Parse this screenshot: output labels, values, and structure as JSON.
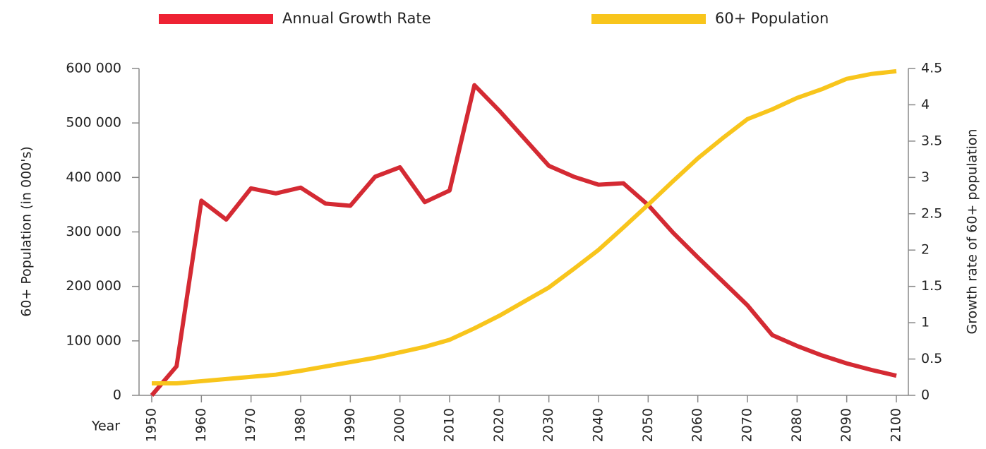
{
  "chart_data": {
    "type": "line",
    "x": [
      1950,
      1955,
      1960,
      1965,
      1970,
      1975,
      1980,
      1985,
      1990,
      1995,
      2000,
      2005,
      2010,
      2015,
      2020,
      2025,
      2030,
      2035,
      2040,
      2045,
      2050,
      2055,
      2060,
      2065,
      2070,
      2075,
      2080,
      2085,
      2090,
      2095,
      2100
    ],
    "series": [
      {
        "name": "Annual Growth Rate",
        "color": "#d42a33",
        "axis": "y2",
        "values": [
          0,
          0.4,
          2.68,
          2.42,
          2.85,
          2.78,
          2.86,
          2.64,
          2.61,
          3.01,
          3.14,
          2.66,
          2.82,
          4.27,
          3.92,
          3.54,
          3.16,
          3.01,
          2.9,
          2.92,
          2.62,
          2.24,
          1.9,
          1.57,
          1.24,
          0.83,
          0.68,
          0.55,
          0.44,
          0.35,
          0.27
        ]
      },
      {
        "name": "60+ Population",
        "color": "#f8c51c",
        "values": [
          22000,
          22000,
          26000,
          30000,
          34000,
          38000,
          45000,
          53000,
          61000,
          69000,
          79000,
          89000,
          102000,
          123000,
          146000,
          172000,
          198000,
          232000,
          267000,
          308000,
          350000,
          393000,
          435000,
          472000,
          507000,
          525000,
          546000,
          562000,
          581000,
          590000,
          595000
        ]
      }
    ],
    "xlabel": "Year",
    "ylabel": "60+ Population (in 000's)",
    "y2label": "Growth rate of 60+ population",
    "xlim": [
      1950,
      2100
    ],
    "xticks": [
      1950,
      1960,
      1970,
      1980,
      1990,
      2000,
      2010,
      2020,
      2030,
      2040,
      2050,
      2060,
      2070,
      2080,
      2090,
      2100
    ],
    "ylim": [
      0,
      600000
    ],
    "yticks": [
      0,
      {
        "value": 100000,
        "label": "100 000"
      },
      {
        "value": 200000,
        "label": "200 000"
      },
      {
        "value": 300000,
        "label": "300 000"
      },
      {
        "value": 400000,
        "label": "400 000"
      },
      {
        "value": 500000,
        "label": "500 000"
      },
      {
        "value": 600000,
        "label": "600 000"
      }
    ],
    "y2lim": [
      0,
      4.5
    ],
    "y2ticks": [
      0,
      0.5,
      1,
      1.5,
      2,
      2.5,
      3,
      3.5,
      4,
      4.5
    ],
    "legend": "top"
  }
}
